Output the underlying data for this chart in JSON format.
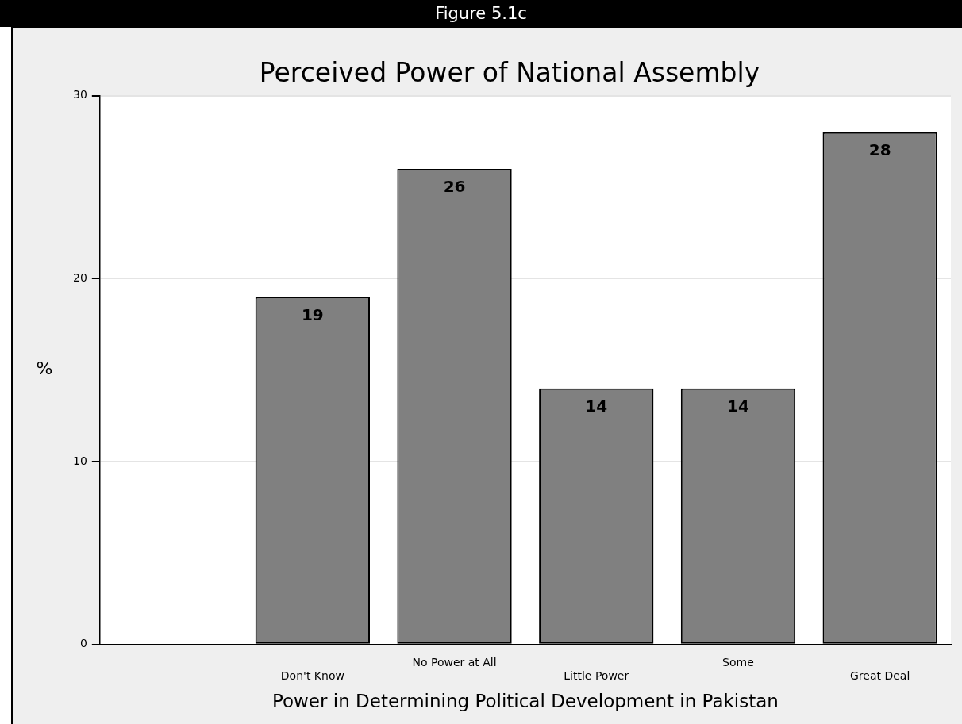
{
  "chart_data": {
    "type": "bar",
    "title": "Perceived Power of National Assembly",
    "subtitle": "Figure 5.1c",
    "xlabel": "Power in Determining Political Development in Pakistan",
    "ylabel": "%",
    "categories": [
      null,
      "Don't Know",
      "No Power at All",
      "Little Power",
      "Some",
      "Great Deal"
    ],
    "values": [
      null,
      19,
      26,
      14,
      14,
      28
    ],
    "data_labels": true,
    "color": "#808080",
    "ylim": [
      0,
      30
    ],
    "yticks": [
      0,
      10,
      20,
      30
    ],
    "grid": "y"
  }
}
